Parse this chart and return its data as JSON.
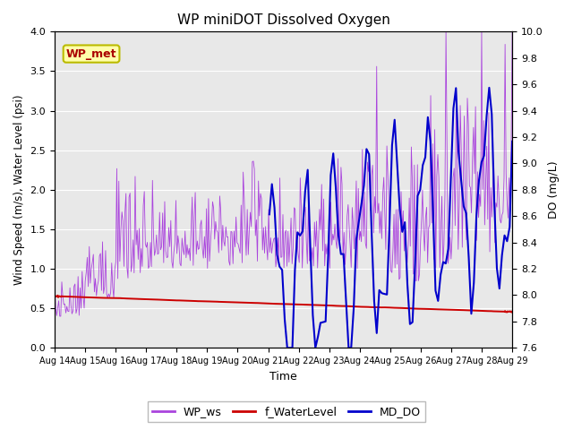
{
  "title": "WP miniDOT Dissolved Oxygen",
  "xlabel": "Time",
  "ylabel_left": "Wind Speed (m/s), Water Level (psi)",
  "ylabel_right": "DO (mg/L)",
  "n_days": 15,
  "ylim_left": [
    0.0,
    4.0
  ],
  "ylim_right": [
    7.6,
    10.0
  ],
  "xtick_labels": [
    "Aug 14",
    "Aug 15",
    "Aug 16",
    "Aug 17",
    "Aug 18",
    "Aug 19",
    "Aug 20",
    "Aug 21",
    "Aug 22",
    "Aug 23",
    "Aug 24",
    "Aug 25",
    "Aug 26",
    "Aug 27",
    "Aug 28",
    "Aug 29"
  ],
  "background_color": "#e8e8e8",
  "wp_ws_color": "#aa44dd",
  "f_waterlevel_color": "#cc0000",
  "md_do_color": "#0000cc",
  "legend_label_ws": "WP_ws",
  "legend_label_wl": "f_WaterLevel",
  "legend_label_do": "MD_DO",
  "annotation_text": "WP_met",
  "annotation_color": "#aa0000",
  "annotation_bg": "#ffffaa",
  "annotation_border": "#bbbb00",
  "yticks_left": [
    0.0,
    0.5,
    1.0,
    1.5,
    2.0,
    2.5,
    3.0,
    3.5,
    4.0
  ],
  "yticks_right": [
    7.6,
    7.8,
    8.0,
    8.2,
    8.4,
    8.6,
    8.8,
    9.0,
    9.2,
    9.4,
    9.6,
    9.8,
    10.0
  ]
}
